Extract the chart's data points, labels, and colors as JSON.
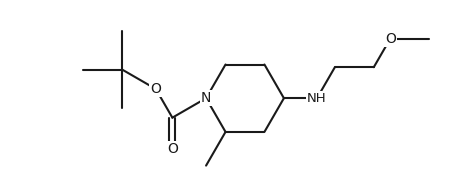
{
  "background": "#ffffff",
  "line_color": "#1a1a1a",
  "line_width": 1.5,
  "font_size": 9.5,
  "figsize": [
    4.77,
    1.91
  ],
  "dpi": 100,
  "xlim": [
    0,
    10
  ],
  "ylim": [
    0,
    4
  ]
}
